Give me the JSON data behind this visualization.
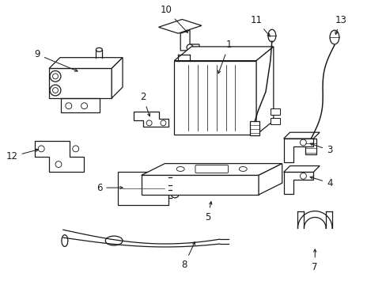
{
  "background_color": "#ffffff",
  "line_color": "#1a1a1a",
  "line_width": 0.9,
  "label_fontsize": 8.5,
  "fig_width": 4.89,
  "fig_height": 3.6,
  "dpi": 100
}
